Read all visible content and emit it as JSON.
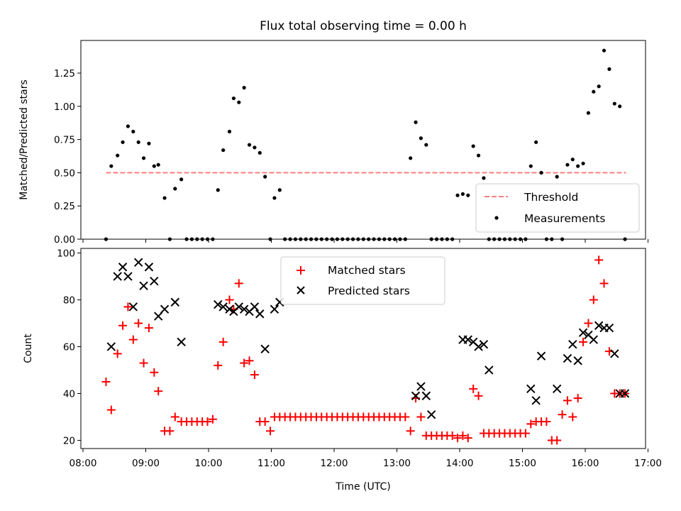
{
  "chart_data": [
    {
      "type": "scatter",
      "title": "Flux total observing time = 0.00 h",
      "xlabel": "",
      "ylabel": "Matched/Predicted stars",
      "ylim": [
        0,
        1.5
      ],
      "xlim": [
        "08:00",
        "17:00"
      ],
      "yticks": [
        "0.00",
        "0.25",
        "0.50",
        "0.75",
        "1.00",
        "1.25"
      ],
      "threshold": {
        "name": "Threshold",
        "value": 0.5,
        "x_from": "08:22",
        "x_to": "16:39",
        "color": "#ff7f7f",
        "style": "dashed"
      },
      "series": [
        {
          "name": "Measurements",
          "color": "#000000",
          "marker": "dot",
          "x": [
            "08:22",
            "08:27",
            "08:33",
            "08:38",
            "08:43",
            "08:48",
            "08:53",
            "08:58",
            "09:03",
            "09:08",
            "09:12",
            "09:18",
            "09:23",
            "09:28",
            "09:34",
            "09:39",
            "09:44",
            "09:49",
            "09:54",
            "09:59",
            "10:04",
            "10:09",
            "10:14",
            "10:20",
            "10:24",
            "10:29",
            "10:34",
            "10:39",
            "10:44",
            "10:49",
            "10:54",
            "10:59",
            "11:03",
            "11:08",
            "11:13",
            "11:18",
            "11:23",
            "11:28",
            "11:33",
            "11:38",
            "11:43",
            "11:48",
            "11:53",
            "11:58",
            "12:03",
            "12:08",
            "12:13",
            "12:18",
            "12:23",
            "12:28",
            "12:33",
            "12:38",
            "12:43",
            "12:48",
            "12:53",
            "12:58",
            "13:03",
            "13:08",
            "13:13",
            "13:18",
            "13:23",
            "13:28",
            "13:33",
            "13:38",
            "13:43",
            "13:48",
            "13:53",
            "13:58",
            "14:03",
            "14:08",
            "14:13",
            "14:18",
            "14:23",
            "14:28",
            "14:33",
            "14:38",
            "14:43",
            "14:48",
            "14:53",
            "14:58",
            "15:03",
            "15:08",
            "15:13",
            "15:18",
            "15:23",
            "15:28",
            "15:33",
            "15:38",
            "15:43",
            "15:48",
            "15:53",
            "15:58",
            "16:03",
            "16:08",
            "16:13",
            "16:18",
            "16:23",
            "16:28",
            "16:33",
            "16:38"
          ],
          "y": [
            0.0,
            0.55,
            0.63,
            0.73,
            0.85,
            0.81,
            0.73,
            0.61,
            0.72,
            0.55,
            0.56,
            0.31,
            0.0,
            0.38,
            0.45,
            0.0,
            0.0,
            0.0,
            0.0,
            0.0,
            0.0,
            0.37,
            0.67,
            0.81,
            1.06,
            1.03,
            1.14,
            0.71,
            0.69,
            0.65,
            0.47,
            0.0,
            0.31,
            0.37,
            0.0,
            0.0,
            0.0,
            0.0,
            0.0,
            0.0,
            0.0,
            0.0,
            0.0,
            0.0,
            0.0,
            0.0,
            0.0,
            0.0,
            0.0,
            0.0,
            0.0,
            0.0,
            0.0,
            0.0,
            0.0,
            0.0,
            0.0,
            0.0,
            0.61,
            0.88,
            0.76,
            0.71,
            0.0,
            0.0,
            0.0,
            0.0,
            0.0,
            0.33,
            0.34,
            0.33,
            0.7,
            0.63,
            0.46,
            0.0,
            0.0,
            0.0,
            0.0,
            0.0,
            0.0,
            0.0,
            0.0,
            0.55,
            0.73,
            0.5,
            0.0,
            0.0,
            0.47,
            0.0,
            0.56,
            0.6,
            0.55,
            0.57,
            0.95,
            1.11,
            1.15,
            1.42,
            1.28,
            1.02,
            1.0,
            0.0
          ]
        }
      ],
      "legend": {
        "position": "lower right",
        "entries": [
          "Threshold",
          "Measurements"
        ]
      }
    },
    {
      "type": "scatter",
      "title": "",
      "xlabel": "Time (UTC)",
      "ylabel": "Count",
      "ylim": [
        16.5,
        100
      ],
      "xlim": [
        "08:00",
        "17:00"
      ],
      "yticks": [
        "20",
        "40",
        "60",
        "80",
        "100"
      ],
      "xticks": [
        "08:00",
        "09:00",
        "10:00",
        "11:00",
        "12:00",
        "13:00",
        "14:00",
        "15:00",
        "16:00",
        "17:00"
      ],
      "series": [
        {
          "name": "Matched stars",
          "color": "#ff0000",
          "marker": "plus",
          "x": [
            "08:22",
            "08:27",
            "08:33",
            "08:38",
            "08:43",
            "08:48",
            "08:53",
            "08:58",
            "09:03",
            "09:08",
            "09:12",
            "09:18",
            "09:23",
            "09:28",
            "09:34",
            "09:39",
            "09:44",
            "09:49",
            "09:54",
            "09:59",
            "10:04",
            "10:09",
            "10:14",
            "10:20",
            "10:24",
            "10:29",
            "10:34",
            "10:39",
            "10:44",
            "10:49",
            "10:54",
            "10:59",
            "11:03",
            "11:08",
            "11:13",
            "11:18",
            "11:23",
            "11:28",
            "11:33",
            "11:38",
            "11:43",
            "11:48",
            "11:53",
            "11:58",
            "12:03",
            "12:08",
            "12:13",
            "12:18",
            "12:23",
            "12:28",
            "12:33",
            "12:38",
            "12:43",
            "12:48",
            "12:53",
            "12:58",
            "13:03",
            "13:08",
            "13:13",
            "13:18",
            "13:23",
            "13:28",
            "13:33",
            "13:38",
            "13:43",
            "13:48",
            "13:53",
            "13:58",
            "14:03",
            "14:08",
            "14:13",
            "14:18",
            "14:23",
            "14:28",
            "14:33",
            "14:38",
            "14:43",
            "14:48",
            "14:53",
            "14:58",
            "15:03",
            "15:08",
            "15:13",
            "15:18",
            "15:23",
            "15:28",
            "15:33",
            "15:38",
            "15:43",
            "15:48",
            "15:53",
            "15:58",
            "16:03",
            "16:08",
            "16:13",
            "16:18",
            "16:23",
            "16:28",
            "16:33",
            "16:38"
          ],
          "y": [
            45,
            33,
            57,
            69,
            77,
            63,
            70,
            53,
            68,
            49,
            41,
            24,
            24,
            30,
            28,
            28,
            28,
            28,
            28,
            28,
            29,
            52,
            62,
            80,
            76,
            87,
            53,
            54,
            48,
            28,
            28,
            24,
            30,
            30,
            30,
            30,
            30,
            30,
            30,
            30,
            30,
            30,
            30,
            30,
            30,
            30,
            30,
            30,
            30,
            30,
            30,
            30,
            30,
            30,
            30,
            30,
            30,
            30,
            24,
            38,
            30,
            22,
            22,
            22,
            22,
            22,
            22,
            21,
            22,
            21,
            42,
            39,
            23,
            23,
            23,
            23,
            23,
            23,
            23,
            23,
            23,
            27,
            28,
            28,
            28,
            20,
            20,
            31,
            37,
            30,
            38,
            62,
            70,
            80,
            97,
            87,
            58,
            40,
            40,
            40
          ]
        },
        {
          "name": "Predicted stars",
          "color": "#000000",
          "marker": "x",
          "x": [
            "08:27",
            "08:33",
            "08:38",
            "08:43",
            "08:48",
            "08:53",
            "08:58",
            "09:03",
            "09:08",
            "09:12",
            "09:18",
            "09:28",
            "09:34",
            "10:09",
            "10:14",
            "10:20",
            "10:24",
            "10:29",
            "10:34",
            "10:39",
            "10:44",
            "10:49",
            "10:54",
            "11:03",
            "11:08",
            "13:18",
            "13:23",
            "13:28",
            "13:33",
            "14:03",
            "14:08",
            "14:13",
            "14:18",
            "14:23",
            "14:28",
            "15:08",
            "15:13",
            "15:18",
            "15:33",
            "15:43",
            "15:48",
            "15:53",
            "15:58",
            "16:03",
            "16:08",
            "16:13",
            "16:18",
            "16:23",
            "16:28",
            "16:33",
            "16:38"
          ],
          "y": [
            60,
            90,
            94,
            90,
            77,
            96,
            86,
            94,
            88,
            73,
            76,
            79,
            62,
            78,
            77,
            76,
            75,
            77,
            76,
            75,
            77,
            74,
            59,
            76,
            79,
            39,
            43,
            39,
            31,
            63,
            63,
            62,
            60,
            61,
            50,
            42,
            37,
            56,
            42,
            55,
            61,
            54,
            66,
            65,
            63,
            69,
            68,
            68,
            57,
            40,
            40
          ]
        }
      ],
      "legend": {
        "position": "upper center",
        "entries": [
          "Matched stars",
          "Predicted stars"
        ]
      }
    }
  ]
}
